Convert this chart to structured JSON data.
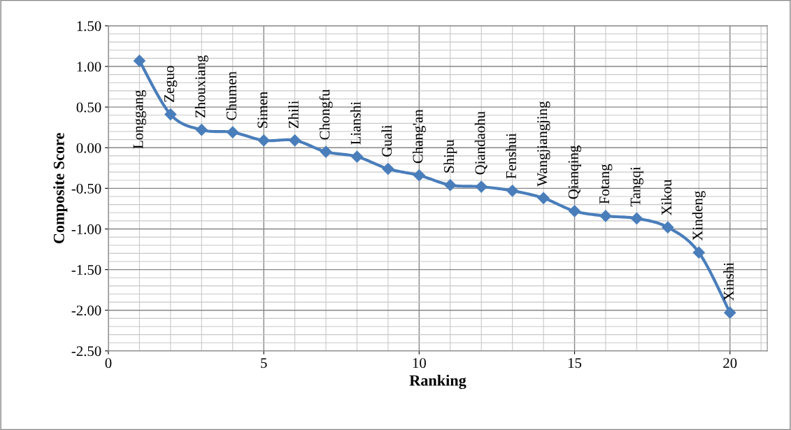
{
  "chart_data": {
    "type": "line",
    "xlabel": "Ranking",
    "ylabel": "Composite Score",
    "x": [
      1,
      2,
      3,
      4,
      5,
      6,
      7,
      8,
      9,
      10,
      11,
      12,
      13,
      14,
      15,
      16,
      17,
      18,
      19,
      20
    ],
    "series": [
      {
        "color": "#4a7ebb",
        "values": [
          1.07,
          0.41,
          0.22,
          0.19,
          0.09,
          0.09,
          -0.05,
          -0.11,
          -0.26,
          -0.34,
          -0.46,
          -0.48,
          -0.53,
          -0.62,
          -0.78,
          -0.84,
          -0.87,
          -0.98,
          -1.29,
          -2.03
        ]
      }
    ],
    "marker": "diamond",
    "line_style": "solid",
    "grid": true,
    "legend": false,
    "xlim": [
      0,
      21.2
    ],
    "xticks": [
      0,
      5,
      10,
      15,
      20
    ],
    "ylim": [
      -2.5,
      1.5
    ],
    "yticks": [
      {
        "value": -2.5,
        "label": "-2.50"
      },
      {
        "value": -2.0,
        "label": "-2.00"
      },
      {
        "value": -1.5,
        "label": "-1.50"
      },
      {
        "value": -1.0,
        "label": "-1.00"
      },
      {
        "value": -0.5,
        "label": "-0.50"
      },
      {
        "value": 0,
        "label": "0.00"
      },
      {
        "value": 0.5,
        "label": "0.50"
      },
      {
        "value": 1.0,
        "label": "1.00"
      },
      {
        "value": 1.5,
        "label": "1.50"
      }
    ],
    "annotations": [
      {
        "text": "Longgang",
        "x": 1,
        "y": 1.07
      },
      {
        "text": "Zeguo",
        "x": 2,
        "y": 0.41
      },
      {
        "text": "Zhouxiang",
        "x": 3,
        "y": 0.22
      },
      {
        "text": "Chumen",
        "x": 4,
        "y": 0.19
      },
      {
        "text": "Simen",
        "x": 5,
        "y": 0.09
      },
      {
        "text": "Zhili",
        "x": 6,
        "y": 0.09
      },
      {
        "text": "Chongfu",
        "x": 7,
        "y": -0.05
      },
      {
        "text": "Lianshi",
        "x": 8,
        "y": -0.11
      },
      {
        "text": "Guali",
        "x": 9,
        "y": -0.26
      },
      {
        "text": "Chang'an",
        "x": 10,
        "y": -0.34
      },
      {
        "text": "Shipu",
        "x": 11,
        "y": -0.46
      },
      {
        "text": "Qiandaohu",
        "x": 12,
        "y": -0.48
      },
      {
        "text": "Fenshui",
        "x": 13,
        "y": -0.53
      },
      {
        "text": "Wangjiangjing",
        "x": 14,
        "y": -0.62
      },
      {
        "text": "Qianqing",
        "x": 15,
        "y": -0.78
      },
      {
        "text": "Fotang",
        "x": 16,
        "y": -0.84
      },
      {
        "text": "Tangqi",
        "x": 17,
        "y": -0.87
      },
      {
        "text": "Xikou",
        "x": 18,
        "y": -0.98
      },
      {
        "text": "Xindeng",
        "x": 19,
        "y": -1.29
      },
      {
        "text": "Xinshi",
        "x": 20,
        "y": -2.03
      }
    ]
  }
}
